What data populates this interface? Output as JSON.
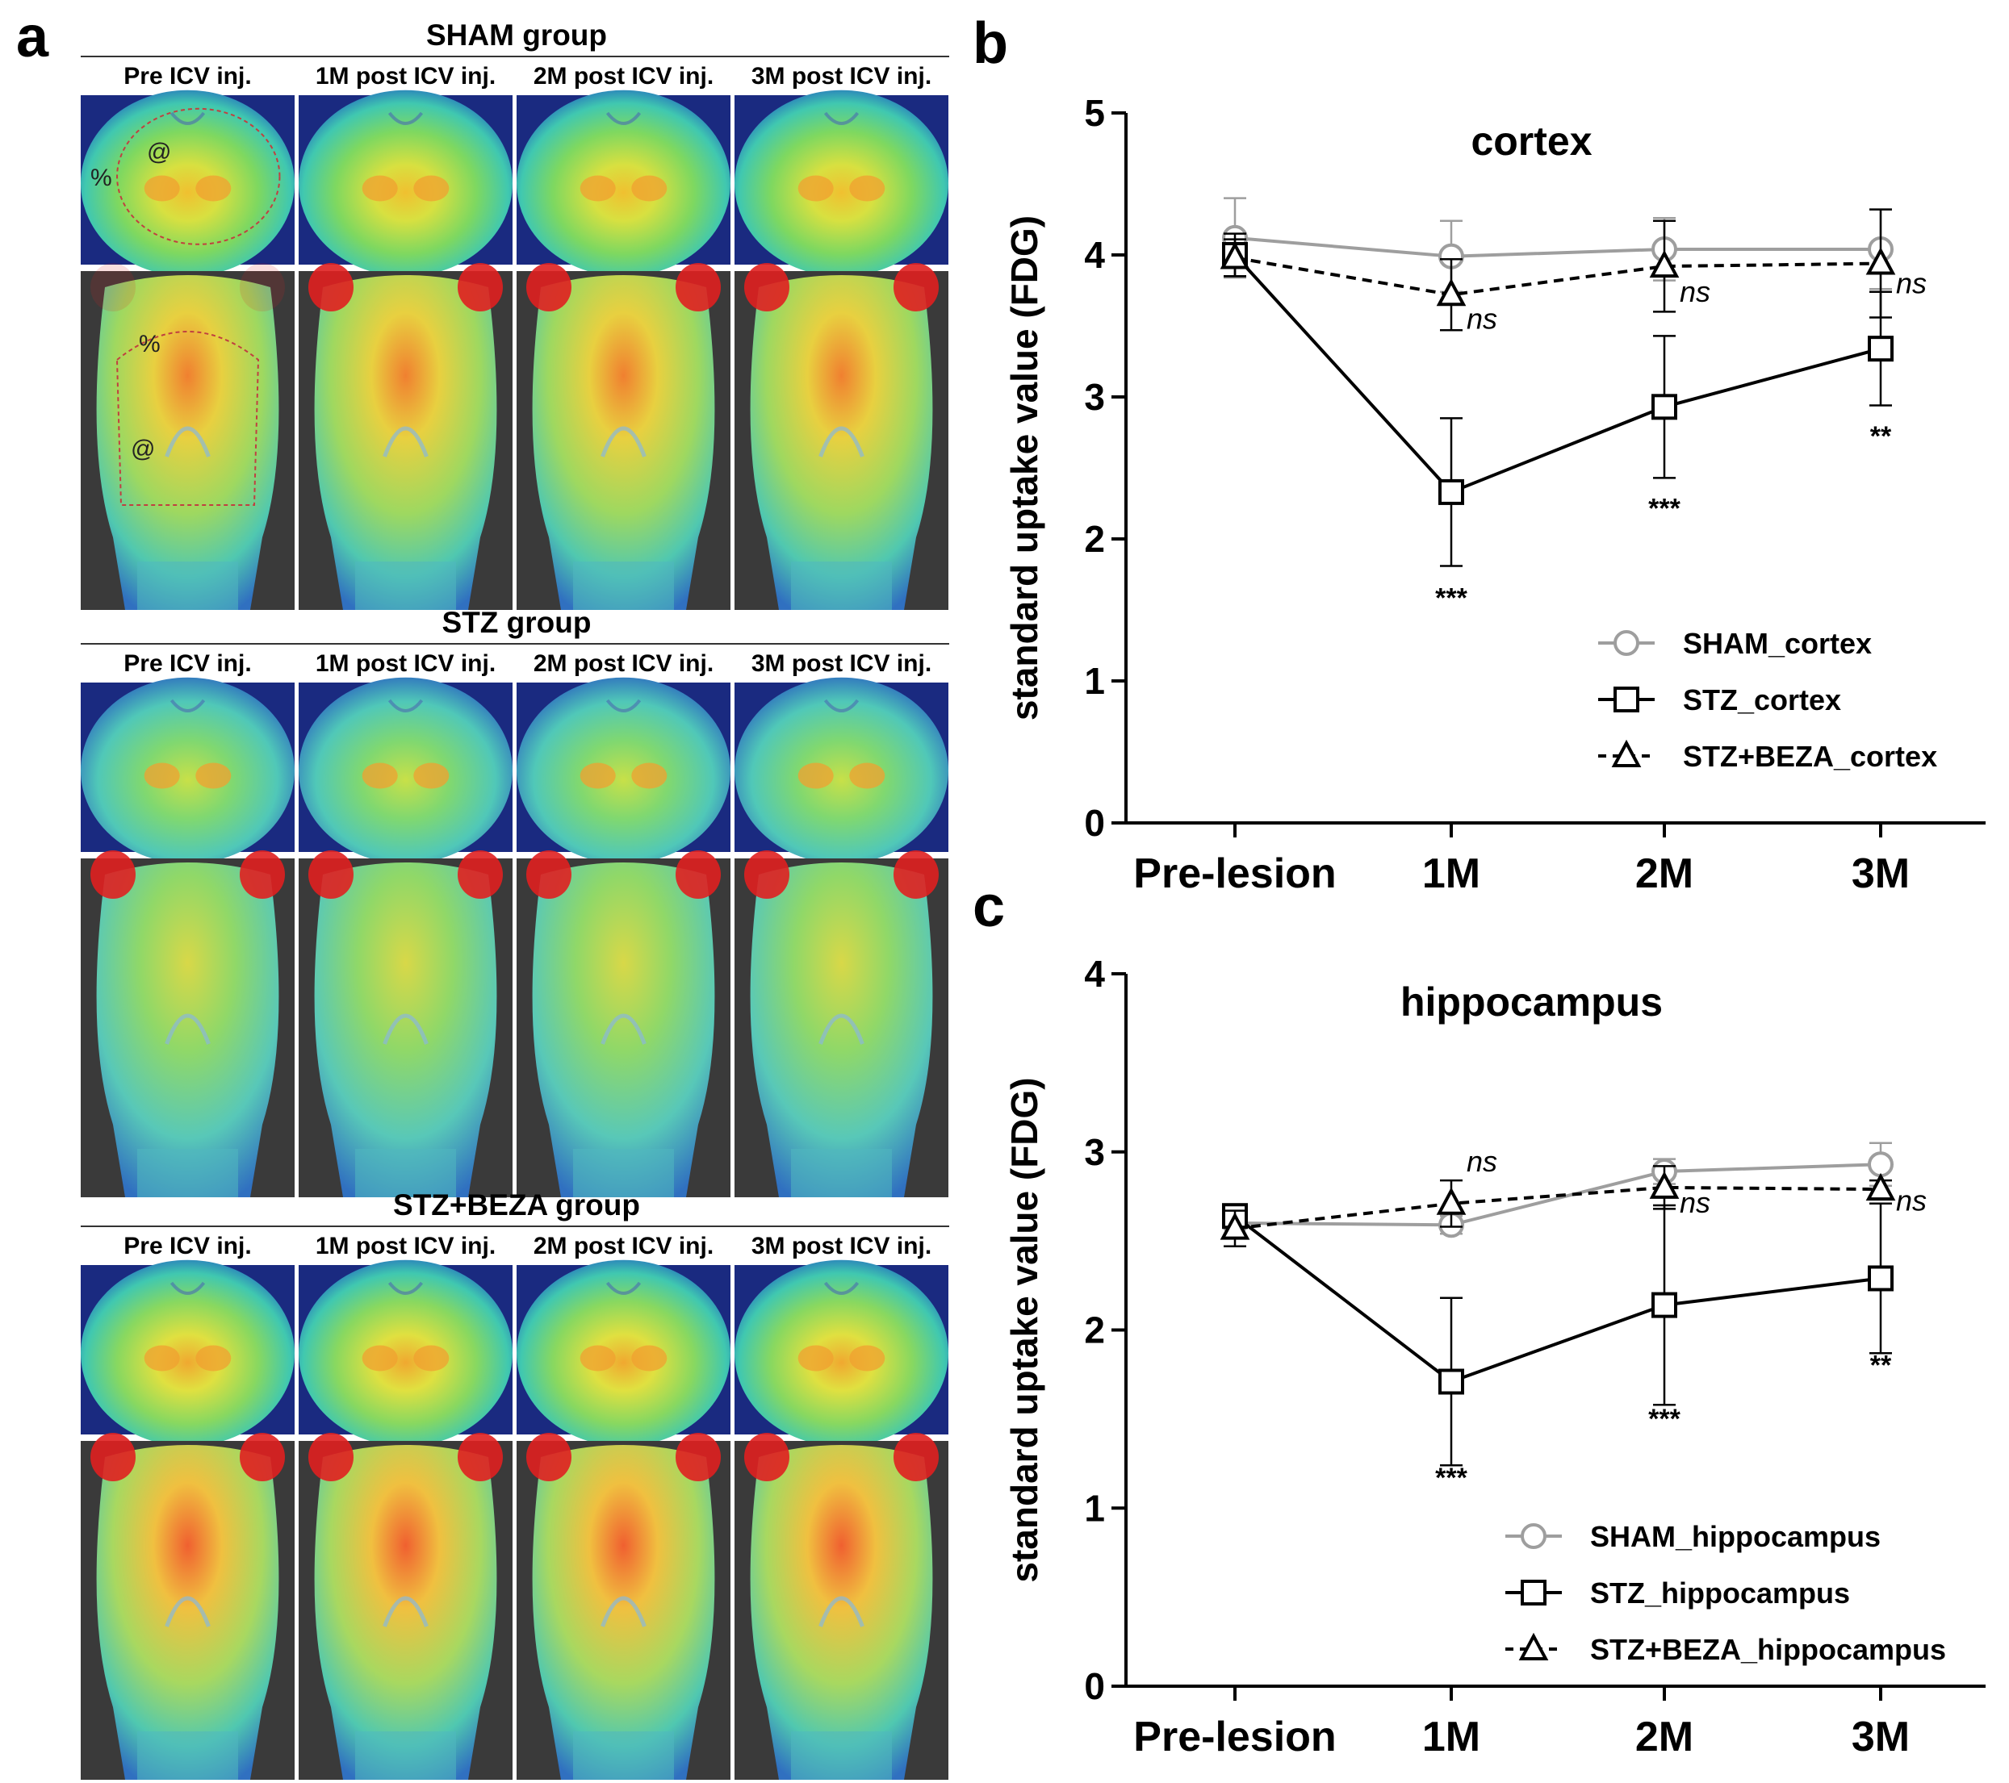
{
  "panel_a": {
    "letter": "a",
    "groups": [
      {
        "title": "SHAM group",
        "intensity": "sham"
      },
      {
        "title": "STZ group",
        "intensity": "stz"
      },
      {
        "title": "STZ+BEZA group",
        "intensity": "beza"
      }
    ],
    "columns": [
      "Pre ICV inj.",
      "1M post ICV inj.",
      "2M post ICV inj.",
      "3M post ICV inj."
    ],
    "roi_marks": {
      "cortex": "%",
      "hippocampus": "@"
    }
  },
  "panel_b": {
    "letter": "b"
  },
  "panel_c": {
    "letter": "c"
  },
  "colors": {
    "sham": "#9e9e9e",
    "stz": "#000000",
    "beza": "#000000"
  },
  "chart_data": [
    {
      "type": "line",
      "title": "cortex",
      "xlabel": "",
      "ylabel": "standard uptake value (FDG)",
      "categories": [
        "Pre-lesion",
        "1M",
        "2M",
        "3M"
      ],
      "ylim": [
        0,
        5
      ],
      "yticks": [
        0,
        1,
        2,
        3,
        4,
        5
      ],
      "series": [
        {
          "name": "SHAM_cortex",
          "marker": "circle",
          "style": "solid",
          "color": "#9e9e9e",
          "values": [
            4.12,
            3.99,
            4.04,
            4.04
          ],
          "errors": [
            0.28,
            0.25,
            0.22,
            0.28
          ]
        },
        {
          "name": "STZ_cortex",
          "marker": "square",
          "style": "solid",
          "color": "#000000",
          "values": [
            4.0,
            2.33,
            2.93,
            3.34
          ],
          "errors": [
            0.15,
            0.52,
            0.5,
            0.4
          ]
        },
        {
          "name": "STZ+BEZA_cortex",
          "marker": "triangle",
          "style": "dashed",
          "color": "#000000",
          "values": [
            3.98,
            3.72,
            3.92,
            3.94
          ],
          "errors": [
            0.13,
            0.25,
            0.32,
            0.38
          ]
        }
      ],
      "annotations": [
        {
          "category": "1M",
          "text": "***",
          "kind": "sig",
          "y": 1.52
        },
        {
          "category": "2M",
          "text": "***",
          "kind": "sig",
          "y": 2.15
        },
        {
          "category": "3M",
          "text": "**",
          "kind": "sig",
          "y": 2.66
        },
        {
          "category": "1M",
          "text": "ns",
          "kind": "ns",
          "y": 3.48
        },
        {
          "category": "2M",
          "text": "ns",
          "kind": "ns",
          "y": 3.67
        },
        {
          "category": "3M",
          "text": "ns",
          "kind": "ns",
          "y": 3.73
        }
      ],
      "legend_position": "bottom-right"
    },
    {
      "type": "line",
      "title": "hippocampus",
      "xlabel": "",
      "ylabel": "standard uptake value (FDG)",
      "categories": [
        "Pre-lesion",
        "1M",
        "2M",
        "3M"
      ],
      "ylim": [
        0,
        4
      ],
      "yticks": [
        0,
        1,
        2,
        3,
        4
      ],
      "series": [
        {
          "name": "SHAM_hippocampus",
          "marker": "circle",
          "style": "solid",
          "color": "#9e9e9e",
          "values": [
            2.6,
            2.59,
            2.89,
            2.93
          ],
          "errors": [
            0.08,
            0.05,
            0.07,
            0.12
          ]
        },
        {
          "name": "STZ_hippocampus",
          "marker": "square",
          "style": "solid",
          "color": "#000000",
          "values": [
            2.64,
            1.71,
            2.14,
            2.29
          ],
          "errors": [
            0.05,
            0.47,
            0.56,
            0.42
          ]
        },
        {
          "name": "STZ+BEZA_hippocampus",
          "marker": "triangle",
          "style": "dashed",
          "color": "#000000",
          "values": [
            2.57,
            2.71,
            2.8,
            2.79
          ],
          "errors": [
            0.1,
            0.13,
            0.12,
            0.05
          ]
        }
      ],
      "annotations": [
        {
          "category": "1M",
          "text": "***",
          "kind": "sig",
          "y": 1.12
        },
        {
          "category": "2M",
          "text": "***",
          "kind": "sig",
          "y": 1.45
        },
        {
          "category": "3M",
          "text": "**",
          "kind": "sig",
          "y": 1.75
        },
        {
          "category": "1M",
          "text": "ns",
          "kind": "ns",
          "y": 2.89
        },
        {
          "category": "2M",
          "text": "ns",
          "kind": "ns",
          "y": 2.66
        },
        {
          "category": "3M",
          "text": "ns",
          "kind": "ns",
          "y": 2.67
        }
      ],
      "legend_position": "bottom-right"
    }
  ]
}
